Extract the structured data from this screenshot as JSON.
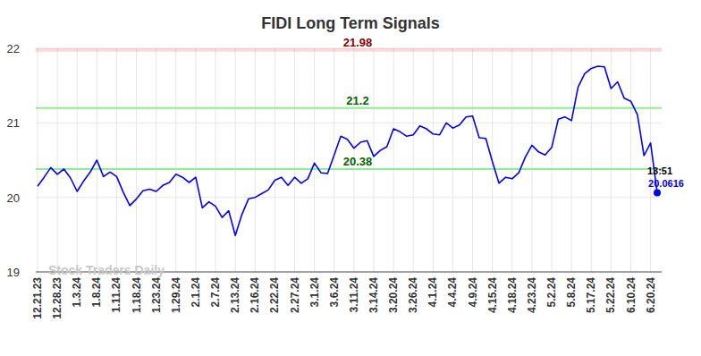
{
  "chart_data": {
    "type": "line",
    "title": "FIDI Long Term Signals",
    "categories": [
      "12.21.23",
      null,
      null,
      "12.28.23",
      null,
      null,
      "1.3.24",
      null,
      null,
      "1.8.24",
      null,
      null,
      "1.11.24",
      null,
      null,
      "1.18.24",
      null,
      null,
      "1.23.24",
      null,
      null,
      "1.29.24",
      null,
      null,
      "2.1.24",
      null,
      null,
      "2.7.24",
      null,
      null,
      "2.13.24",
      null,
      null,
      "2.16.24",
      null,
      null,
      "2.22.24",
      null,
      null,
      "2.27.24",
      null,
      null,
      "3.1.24",
      null,
      null,
      "3.6.24",
      null,
      null,
      "3.11.24",
      null,
      null,
      "3.14.24",
      null,
      null,
      "3.20.24",
      null,
      null,
      "3.26.24",
      null,
      null,
      "4.1.24",
      null,
      null,
      "4.4.24",
      null,
      null,
      "4.9.24",
      null,
      null,
      "4.15.24",
      null,
      null,
      "4.18.24",
      null,
      null,
      "4.23.24",
      null,
      null,
      "5.2.24",
      null,
      null,
      "5.8.24",
      null,
      null,
      "5.17.24",
      null,
      null,
      "5.22.24",
      null,
      null,
      "6.10.24",
      null,
      null,
      "6.20.24",
      null
    ],
    "values": [
      20.15,
      20.27,
      20.4,
      20.31,
      20.38,
      20.26,
      20.08,
      20.22,
      20.34,
      20.5,
      20.28,
      20.34,
      20.28,
      20.07,
      19.89,
      19.98,
      20.09,
      20.11,
      20.08,
      20.16,
      20.2,
      20.31,
      20.27,
      20.2,
      20.27,
      19.86,
      19.94,
      19.88,
      19.73,
      19.82,
      19.49,
      19.77,
      19.98,
      20.0,
      20.05,
      20.1,
      20.23,
      20.27,
      20.16,
      20.27,
      20.19,
      20.25,
      20.46,
      20.33,
      20.32,
      20.57,
      20.82,
      20.78,
      20.66,
      20.74,
      20.76,
      20.55,
      20.63,
      20.68,
      20.92,
      20.88,
      20.82,
      20.84,
      20.96,
      20.92,
      20.85,
      20.84,
      21.0,
      20.93,
      20.97,
      21.08,
      21.09,
      20.8,
      20.79,
      20.48,
      20.19,
      20.27,
      20.25,
      20.33,
      20.54,
      20.7,
      20.61,
      20.57,
      20.67,
      21.05,
      21.08,
      21.03,
      21.48,
      21.66,
      21.73,
      21.76,
      21.75,
      21.46,
      21.55,
      21.33,
      21.29,
      21.11,
      20.56,
      20.73,
      20.0616
    ],
    "color": "#0000ff",
    "ylim": [
      19,
      22
    ],
    "yticks": [
      19,
      20,
      21,
      22
    ],
    "grid": true,
    "levels": [
      {
        "value": 21.98,
        "color": "#8b0000"
      },
      {
        "value": 21.2,
        "color": "#006400"
      },
      {
        "value": 20.38,
        "color": "#006400"
      }
    ],
    "last_time": "13:51",
    "watermark": "Stock Traders Daily"
  }
}
